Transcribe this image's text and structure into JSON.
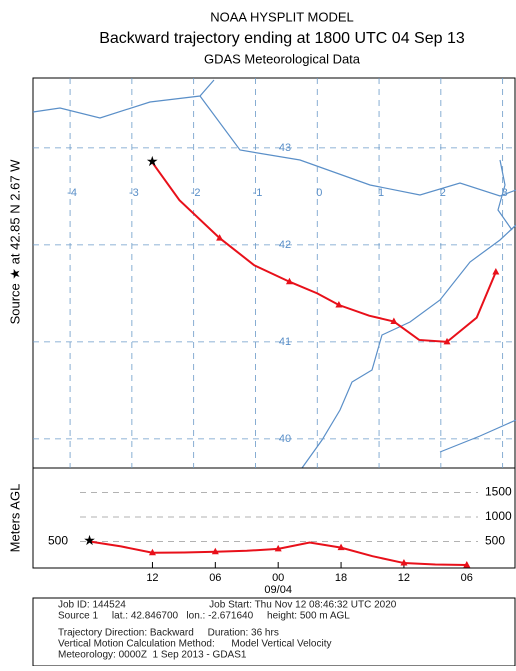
{
  "header": {
    "title": "NOAA HYSPLIT MODEL",
    "subtitle": "Backward trajectory ending at 1800 UTC 04 Sep 13",
    "data_source": "GDAS Meteorological Data"
  },
  "map": {
    "side_label": "Source ★ at 42.85 N 2.67 W",
    "xlim": [
      -4.6,
      3.2
    ],
    "ylim": [
      39.7,
      43.72
    ],
    "lon_ticks": [
      -4,
      -3,
      -2,
      -1,
      0,
      1,
      2,
      3
    ],
    "lat_ticks": [
      43,
      42,
      41,
      40
    ],
    "trajectory": {
      "color": "#e8101a",
      "lon": [
        -2.67,
        -2.23,
        -1.58,
        -1.02,
        -0.45,
        0.0,
        0.35,
        0.84,
        1.24,
        1.65,
        2.1,
        2.58,
        2.89
      ],
      "lat": [
        42.85,
        42.46,
        42.07,
        41.79,
        41.62,
        41.5,
        41.38,
        41.27,
        41.21,
        41.02,
        41.0,
        41.25,
        41.72
      ]
    }
  },
  "height_panel": {
    "axis_label": "Meters AGL",
    "source_label": "500",
    "xlim": [
      -5.4,
      40.6
    ],
    "ylim": [
      0,
      2000
    ],
    "yticks": [
      500,
      1000,
      1500
    ],
    "xticks": [
      {
        "value": 6,
        "label": "12"
      },
      {
        "value": 12,
        "label": "06"
      },
      {
        "value": 18,
        "label": "00"
      },
      {
        "value": 24,
        "label": "18"
      },
      {
        "value": 30,
        "label": "12"
      },
      {
        "value": 36,
        "label": "06"
      }
    ],
    "date_label": "09/04",
    "hours": [
      0,
      3,
      6,
      9,
      12,
      15,
      18,
      21,
      24,
      27,
      30,
      33,
      36
    ],
    "heights": [
      500,
      400,
      270,
      275,
      290,
      310,
      350,
      480,
      375,
      200,
      60,
      30,
      20
    ]
  },
  "footer": {
    "lines": [
      "Job ID: 144524                              Job Start: Thu Nov 12 08:46:32 UTC 2020",
      "Source 1     lat.: 42.846700   lon.: -2.671640     height: 500 m AGL",
      "Trajectory Direction: Backward     Duration: 36 hrs",
      "Vertical Motion Calculation Method:      Model Vertical Velocity",
      "Meteorology: 0000Z  1 Sep 2013 - GDAS1"
    ]
  }
}
